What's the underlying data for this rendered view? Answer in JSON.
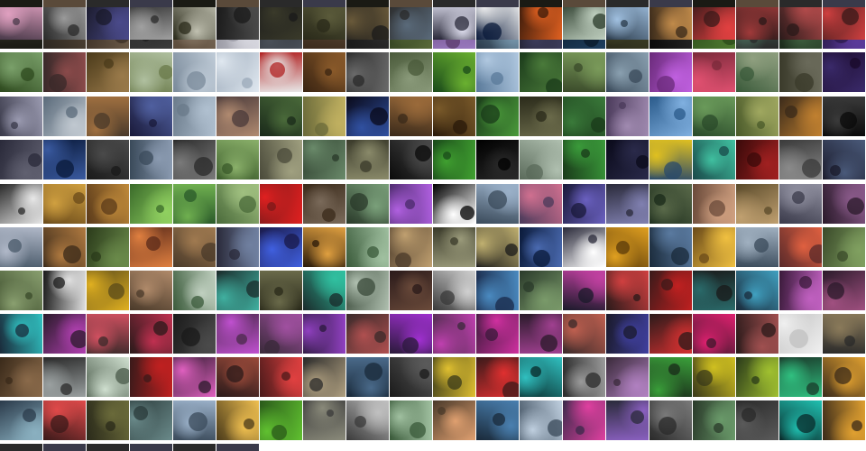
{
  "gallery": {
    "rows": [
      {
        "tiles": [
          [
            "#1a1a14",
            "#3b3a2e"
          ],
          [
            "#2b2620",
            "#5a4a3a"
          ],
          [
            "#3a2e24",
            "#6b5a48"
          ],
          [
            "#1c1c1c",
            "#3c3c3c"
          ],
          [
            "#5a4a3a",
            "#8b7a68"
          ],
          [
            "#9a9aa4",
            "#d8d8e0"
          ],
          [
            "#20242a",
            "#4a5058"
          ],
          [
            "#3a2a1c",
            "#6a5440"
          ],
          [
            "#1a1a1a",
            "#2e2e2e"
          ],
          [
            "#2a3a1a",
            "#5a6a3a"
          ],
          [
            "#5a3a6a",
            "#9a7ac0"
          ],
          [
            "#2a3a4a",
            "#7a9ab0"
          ],
          [
            "#1c1c2a",
            "#3c3c5a"
          ],
          [
            "#0a1a2a",
            "#1e3e5e"
          ],
          [
            "#2a2a1a",
            "#4e5030"
          ],
          [
            "#0a0a0a",
            "#262626"
          ],
          [
            "#2a4a1a",
            "#4e7a30"
          ],
          [
            "#2a2a2a",
            "#4a6a5a"
          ],
          [
            "#1a2a1a",
            "#3e5e3e"
          ],
          [
            "#2a1a4a",
            "#5a3a9a"
          ]
        ]
      },
      {
        "tiles": [
          [
            "#2e4a1e",
            "#7aa06a"
          ],
          [
            "#3a2a2a",
            "#8a4a4a"
          ],
          [
            "#4a3a1a",
            "#9a7a4a"
          ],
          [
            "#6a7a4a",
            "#b0c0a0"
          ],
          [
            "#7a8a9a",
            "#c0ccd8"
          ],
          [
            "#9aa8b8",
            "#e0e8f0"
          ],
          [
            "#b02020",
            "#e8e8e8"
          ],
          [
            "#3a2412",
            "#8a5a2a"
          ],
          [
            "#2a2a2a",
            "#6a6a6a"
          ],
          [
            "#4a5a3a",
            "#8a9a7a"
          ],
          [
            "#1a4a1a",
            "#6ab030"
          ],
          [
            "#5a7a9a",
            "#b0c8e0"
          ],
          [
            "#1a3a1a",
            "#4a7a3a"
          ],
          [
            "#3a4a2a",
            "#7a9a5a"
          ],
          [
            "#3a4a5a",
            "#8aa0b0"
          ],
          [
            "#6a2a7a",
            "#c060e0"
          ],
          [
            "#7a2a3a",
            "#e05070"
          ],
          [
            "#3a5a3a",
            "#90a080"
          ],
          [
            "#3a3a2a",
            "#6a6a5a"
          ],
          [
            "#1a0a2a",
            "#3a2a6a"
          ]
        ]
      },
      {
        "tiles": [
          [
            "#3a3a4a",
            "#9a9ab0"
          ],
          [
            "#5a6a7a",
            "#c0c8d0"
          ],
          [
            "#4a3a2a",
            "#a07040"
          ],
          [
            "#1a1a3a",
            "#5060a0"
          ],
          [
            "#6a7a8a",
            "#b0c0d0"
          ],
          [
            "#4a3a3a",
            "#b08a70"
          ],
          [
            "#1a2a1a",
            "#4a6a3a"
          ],
          [
            "#6a6a3a",
            "#c0b060"
          ],
          [
            "#0a0a1a",
            "#3050a0"
          ],
          [
            "#3a2a1a",
            "#9a6a3a"
          ],
          [
            "#2a1a0a",
            "#7a5a2a"
          ],
          [
            "#1a3a1a",
            "#4a9a3a"
          ],
          [
            "#2a2a1a",
            "#6a6a4a"
          ],
          [
            "#1a3a1a",
            "#3a7a3a"
          ],
          [
            "#4a3a5a",
            "#a08ab0"
          ],
          [
            "#2a5a8a",
            "#80b0e0"
          ],
          [
            "#2a4a2a",
            "#6a9a5a"
          ],
          [
            "#4a5a2a",
            "#a0a860"
          ],
          [
            "#3a2a1a",
            "#c08030"
          ],
          [
            "#0a0a0a",
            "#3a3a3a"
          ]
        ]
      },
      {
        "tiles": [
          [
            "#2a2a3a",
            "#606070"
          ],
          [
            "#0a1a3a",
            "#3a5aa0"
          ],
          [
            "#1a1a1a",
            "#4a4a4a"
          ],
          [
            "#3a4a5a",
            "#8a9ab0"
          ],
          [
            "#2a2a2a",
            "#7a7a7a"
          ],
          [
            "#3a5a2a",
            "#8ab06a"
          ],
          [
            "#4a4a3a",
            "#a0a080"
          ],
          [
            "#2a3a2a",
            "#6a8a6a"
          ],
          [
            "#3a3a2a",
            "#8a8a6a"
          ],
          [
            "#0a0a0a",
            "#4a4a4a"
          ],
          [
            "#1a4a1a",
            "#40a030"
          ],
          [
            "#000000",
            "#2a2a2a"
          ],
          [
            "#5a6a5a",
            "#b0c0b0"
          ],
          [
            "#1a3a1a",
            "#3a9a3a"
          ],
          [
            "#0a0a1a",
            "#2a2a4a"
          ],
          [
            "#2a4a6a",
            "#e0c020"
          ],
          [
            "#1a4a4a",
            "#40c0a0"
          ],
          [
            "#3a0a0a",
            "#a02020"
          ],
          [
            "#3a3a3a",
            "#8a8a8a"
          ],
          [
            "#1a1a2a",
            "#4a5a7a"
          ]
        ]
      },
      {
        "tiles": [
          [
            "#2a2a2a",
            "#e8e8e8"
          ],
          [
            "#6a4a1a",
            "#d0a040"
          ],
          [
            "#5a3a1a",
            "#c08a3a"
          ],
          [
            "#3a6a2a",
            "#90d060"
          ],
          [
            "#2a5a2a",
            "#70b050"
          ],
          [
            "#4a6a3a",
            "#a0c080"
          ],
          [
            "#7a1a1a",
            "#e02020"
          ],
          [
            "#3a2a1a",
            "#7a6a5a"
          ],
          [
            "#2a3a2a",
            "#7aa07a"
          ],
          [
            "#4a2a6a",
            "#b060e0"
          ],
          [
            "#000000",
            "#ffffff"
          ],
          [
            "#3a4a5a",
            "#9ab0c8"
          ],
          [
            "#4a3a5a",
            "#d07090"
          ],
          [
            "#1a1a3a",
            "#6a60c0"
          ],
          [
            "#2a2a3a",
            "#8080b0"
          ],
          [
            "#1a2a1a",
            "#5a6a4a"
          ],
          [
            "#6a4a3a",
            "#d0a080"
          ],
          [
            "#5a4a2a",
            "#c0a070"
          ],
          [
            "#3a3a4a",
            "#9090a0"
          ],
          [
            "#2a1a2a",
            "#8a5a8a"
          ]
        ]
      },
      {
        "tiles": [
          [
            "#4a5a6a",
            "#b0b8c8"
          ],
          [
            "#3a2a1a",
            "#b07a40"
          ],
          [
            "#2a3a1a",
            "#6a8a4a"
          ],
          [
            "#5a2a1a",
            "#e08040"
          ],
          [
            "#4a3a2a",
            "#a07a50"
          ],
          [
            "#2a2a3a",
            "#7080a0"
          ],
          [
            "#1a1a4a",
            "#4060e0"
          ],
          [
            "#2a1a0a",
            "#e0a040"
          ],
          [
            "#3a5a3a",
            "#a0c0a0"
          ],
          [
            "#4a3a2a",
            "#c0a070"
          ],
          [
            "#3a3a2a",
            "#9a9a7a"
          ],
          [
            "#1a1a1a",
            "#c0b070"
          ],
          [
            "#0a1a3a",
            "#4a6ab0"
          ],
          [
            "#2a2a3a",
            "#ffffff"
          ],
          [
            "#5a3a0a",
            "#e0a020"
          ],
          [
            "#1a2a3a",
            "#5a7aa0"
          ],
          [
            "#6a4a1a",
            "#f0c040"
          ],
          [
            "#3a4a5a",
            "#a0b0c0"
          ],
          [
            "#5a2a2a",
            "#e06040"
          ],
          [
            "#3a4a2a",
            "#80a060"
          ]
        ]
      },
      {
        "tiles": [
          [
            "#3a4a2a",
            "#8aa070"
          ],
          [
            "#1a1a1a",
            "#e0e0e0"
          ],
          [
            "#5a4a1a",
            "#e0b020"
          ],
          [
            "#4a3a2a",
            "#b08a6a"
          ],
          [
            "#3a5a3a",
            "#c0d0c0"
          ],
          [
            "#1a2a2a",
            "#40b0a0"
          ],
          [
            "#2a2a1a",
            "#6a6a4a"
          ],
          [
            "#1a2a2a",
            "#30c0a0"
          ],
          [
            "#3a4a3a",
            "#b0c0b0"
          ],
          [
            "#2a1a1a",
            "#6a4a3a"
          ],
          [
            "#3a3a3a",
            "#d0d0d0"
          ],
          [
            "#1a2a4a",
            "#4a8ac0"
          ],
          [
            "#2a3a2a",
            "#7a9a6a"
          ],
          [
            "#1a1a2a",
            "#c040a0"
          ],
          [
            "#2a1a1a",
            "#d04040"
          ],
          [
            "#3a1a1a",
            "#c02020"
          ],
          [
            "#1a1a1a",
            "#2a6a6a"
          ],
          [
            "#1a2a3a",
            "#40a0c0"
          ],
          [
            "#3a1a3a",
            "#c060c0"
          ],
          [
            "#2a1a2a",
            "#a05080"
          ]
        ]
      },
      {
        "tiles": [
          [
            "#1a2a3a",
            "#30c0c0"
          ],
          [
            "#2a1a2a",
            "#b040b0"
          ],
          [
            "#3a2a2a",
            "#d05060"
          ],
          [
            "#2a1a1a",
            "#c03050"
          ],
          [
            "#1a1a1a",
            "#4a4a4a"
          ],
          [
            "#4a2a4a",
            "#c050d0"
          ],
          [
            "#3a2a3a",
            "#a050a0"
          ],
          [
            "#2a1a3a",
            "#9040c0"
          ],
          [
            "#3a2a2a",
            "#b05050"
          ],
          [
            "#2a1a3a",
            "#a030d0"
          ],
          [
            "#3a2a3a",
            "#c040b0"
          ],
          [
            "#3a1a3a",
            "#d030a0"
          ],
          [
            "#2a1a2a",
            "#a04090"
          ],
          [
            "#3a2a2a",
            "#c06050"
          ],
          [
            "#1a1a2a",
            "#4040a0"
          ],
          [
            "#2a1a1a",
            "#d03030"
          ],
          [
            "#3a1a2a",
            "#e02070"
          ],
          [
            "#2a1a1a",
            "#a05050"
          ],
          [
            "#c0c0c0",
            "#f0f0f0"
          ],
          [
            "#2a2a2a",
            "#8a7a5a"
          ]
        ]
      },
      {
        "tiles": [
          [
            "#3a2a1a",
            "#8a6a4a"
          ],
          [
            "#2a2a2a",
            "#9aa0a0"
          ],
          [
            "#4a5a4a",
            "#d0e0d0"
          ],
          [
            "#3a1a1a",
            "#c02020"
          ],
          [
            "#2a1a2a",
            "#e060c0"
          ],
          [
            "#2a1a1a",
            "#9a4a3a"
          ],
          [
            "#4a1a1a",
            "#e04040"
          ],
          [
            "#2a2a2a",
            "#b0a080"
          ],
          [
            "#1a2a3a",
            "#4a6a8a"
          ],
          [
            "#1a1a1a",
            "#5a5a5a"
          ],
          [
            "#3a3a1a",
            "#e0c030"
          ],
          [
            "#3a1a1a",
            "#e03030"
          ],
          [
            "#0a2a2a",
            "#30c0c0"
          ],
          [
            "#2a2a2a",
            "#9a9a9a"
          ],
          [
            "#3a2a3a",
            "#b080c0"
          ],
          [
            "#1a2a1a",
            "#3aa03a"
          ],
          [
            "#3a3a1a",
            "#d0c020"
          ],
          [
            "#2a3a1a",
            "#a0c030"
          ],
          [
            "#1a3a2a",
            "#30c080"
          ],
          [
            "#3a2a1a",
            "#e0a030"
          ]
        ]
      },
      {
        "tiles": [
          [
            "#2a3a4a",
            "#8ab0c0"
          ],
          [
            "#3a1a1a",
            "#e04a4a"
          ],
          [
            "#2a2a1a",
            "#6a6a3a"
          ],
          [
            "#2a3a3a",
            "#6a8a8a"
          ],
          [
            "#3a4a5a",
            "#9ab0c8"
          ],
          [
            "#4a3a1a",
            "#f0c050"
          ],
          [
            "#2a5a1a",
            "#60c030"
          ],
          [
            "#3a3a3a",
            "#8a8a7a"
          ],
          [
            "#3a3a3a",
            "#c0c0c0"
          ],
          [
            "#3a5a3a",
            "#a0c0a0"
          ],
          [
            "#4a3a2a",
            "#e0a070"
          ],
          [
            "#1a2a3a",
            "#4a80b0"
          ],
          [
            "#3a4a5a",
            "#c0d0e0"
          ],
          [
            "#3a2a4a",
            "#e040a0"
          ],
          [
            "#2a2a3a",
            "#8a60c0"
          ],
          [
            "#2a2a2a",
            "#7a7a7a"
          ],
          [
            "#2a3a2a",
            "#6a9a6a"
          ],
          [
            "#2a2a2a",
            "#5a5a5a"
          ],
          [
            "#0a2a2a",
            "#20c0b0"
          ],
          [
            "#3a2a1a",
            "#e0a030"
          ]
        ]
      },
      {
        "tiles": [
          [
            "#4a3a4a",
            "#e0a0c0"
          ],
          [
            "#2a2a2a",
            "#9a9a9a"
          ],
          [
            "#1a1a2a",
            "#4a4a8a"
          ],
          [
            "#2a2a2a",
            "#a0a0a0"
          ],
          [
            "#2a2a1a",
            "#c0c0b0"
          ],
          [
            "#1a1a1a",
            "#4a4a4a"
          ],
          [
            "#1a1a1a",
            "#3a3a2a"
          ],
          [
            "#2a2a1a",
            "#5a5a3a"
          ],
          [
            "#1a1a1a",
            "#6a5a3a"
          ],
          [
            "#2a2a2a",
            "#5a6a7a"
          ],
          [
            "#2a2a3a",
            "#e0e0f0"
          ],
          [
            "#0a1a3a",
            "#f0f0f0"
          ],
          [
            "#3a1a0a",
            "#e06020"
          ],
          [
            "#2a3a2a",
            "#c0d0c0"
          ],
          [
            "#2a3a4a",
            "#a0c0e0"
          ],
          [
            "#3a2a1a",
            "#c08a4a"
          ],
          [
            "#3a1a1a",
            "#e04040"
          ],
          [
            "#2a1a1a",
            "#a03a3a"
          ],
          [
            "#2a1a1a",
            "#b04a4a"
          ],
          [
            "#3a1a1a",
            "#d04040"
          ]
        ]
      }
    ]
  }
}
